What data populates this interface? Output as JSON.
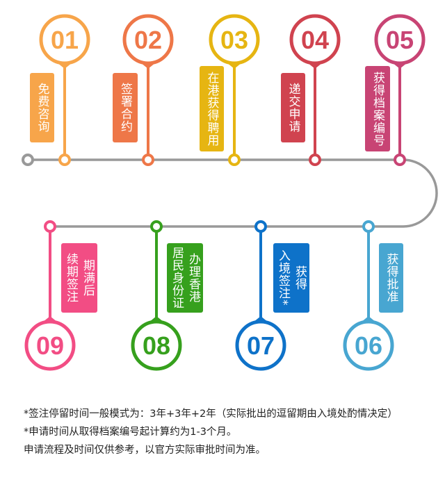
{
  "steps": [
    {
      "number": "01",
      "label": [
        "免费咨询"
      ],
      "color": "#f7a54a"
    },
    {
      "number": "02",
      "label": [
        "签署合约"
      ],
      "color": "#ee7748"
    },
    {
      "number": "03",
      "label": [
        "在港获得聘用"
      ],
      "color": "#e6b512"
    },
    {
      "number": "04",
      "label": [
        "递交申请"
      ],
      "color": "#d0434f"
    },
    {
      "number": "05",
      "label": [
        "获得档案编号"
      ],
      "color": "#c84474"
    },
    {
      "number": "06",
      "label": [
        "获得批准"
      ],
      "color": "#48a6d1"
    },
    {
      "number": "07",
      "label": [
        "获得",
        "入境签注*"
      ],
      "color": "#0e72c9"
    },
    {
      "number": "08",
      "label": [
        "办理香港",
        "居民身份证"
      ],
      "color": "#36a01d"
    },
    {
      "number": "09",
      "label": [
        "期满后",
        "续期签注"
      ],
      "color": "#f24d84"
    }
  ],
  "line_color": "#999999",
  "notes": [
    "*签注停留时间一般模式为：3年+3年+2年（实际批出的逗留期由入境处酌情决定）",
    "*申请时间从取得档案编号起计算约为1-3个月。",
    "申请流程及时间仅供参考，以官方实际审批时间为准。"
  ]
}
